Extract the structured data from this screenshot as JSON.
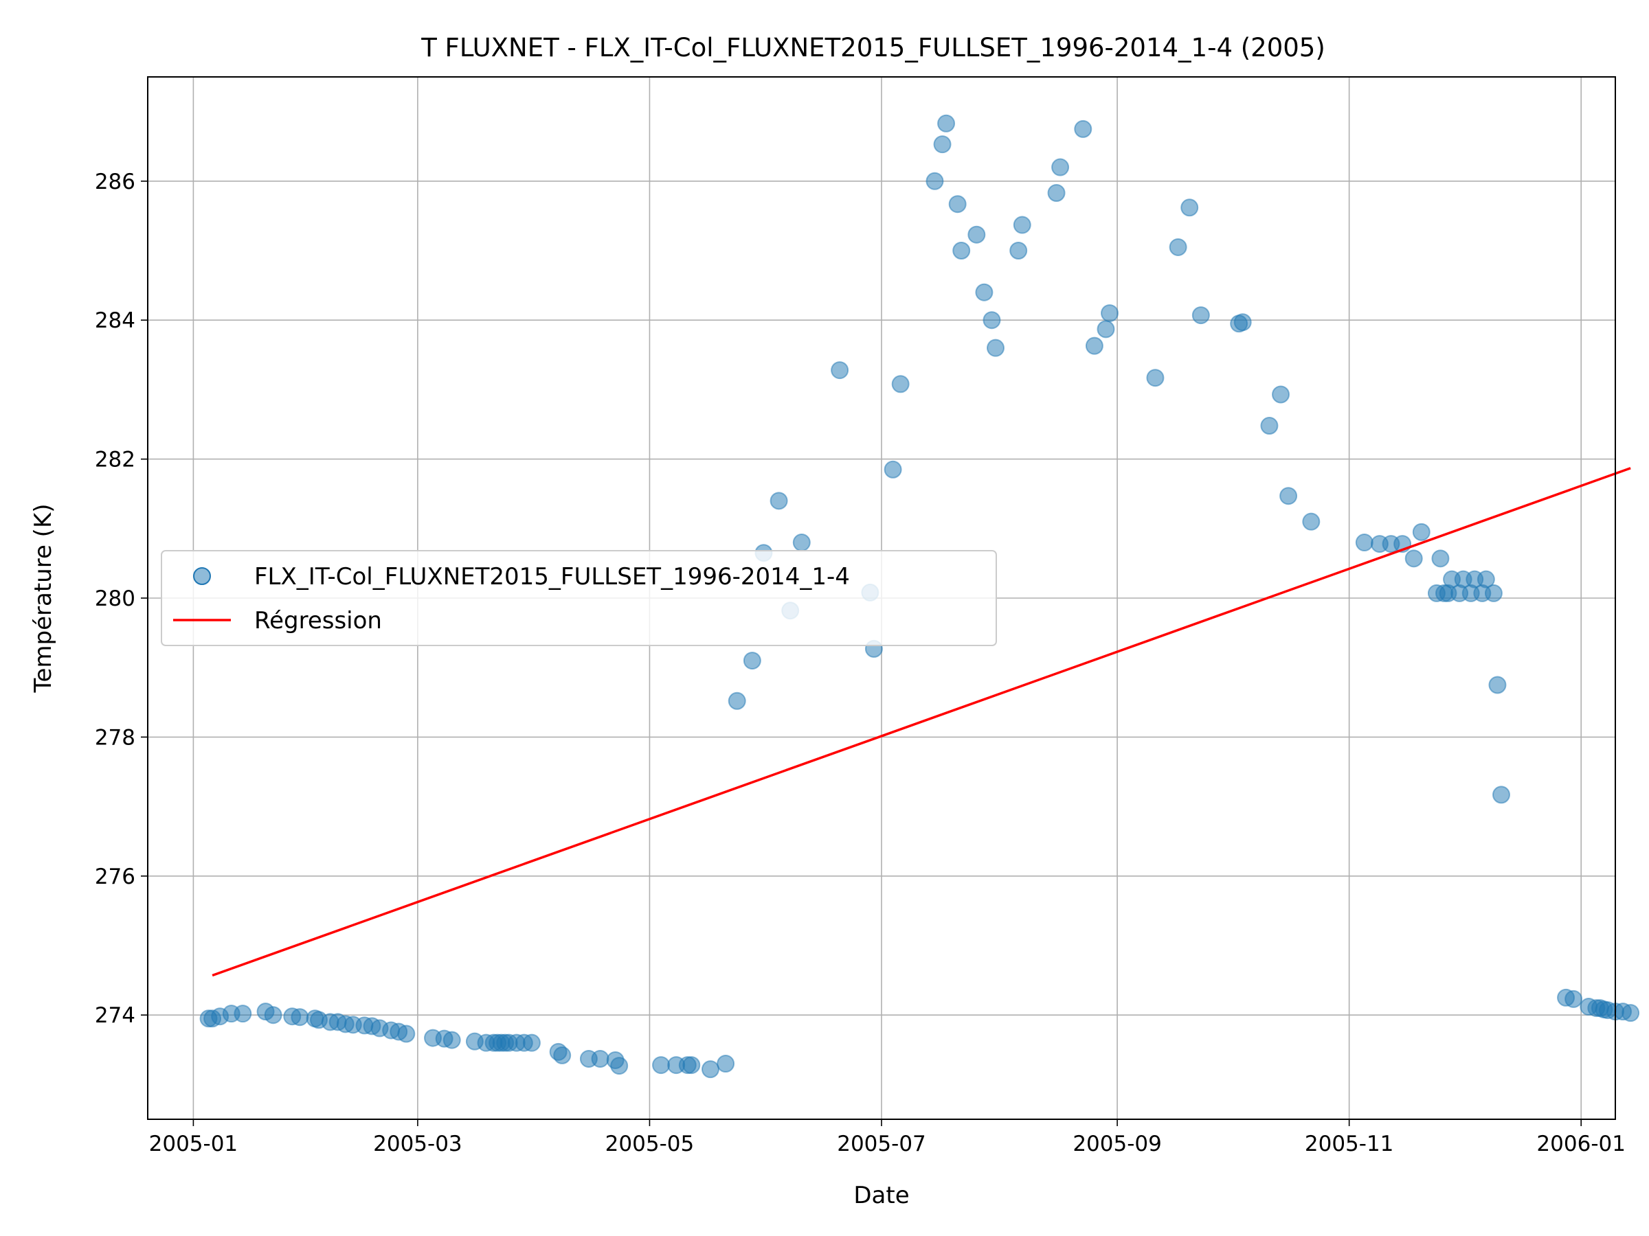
{
  "chart_data": {
    "type": "scatter",
    "title": "T FLUXNET - FLX_IT-Col_FLUXNET2015_FULLSET_1996-2014_1-4 (2005)",
    "xlabel": "Date",
    "ylabel": "Température (K)",
    "xlim": [
      "2004-12-20",
      "2006-01-10"
    ],
    "ylim": [
      272.5,
      287.5
    ],
    "x_ticks": [
      "2005-01",
      "2005-03",
      "2005-05",
      "2005-07",
      "2005-09",
      "2005-11",
      "2006-01"
    ],
    "x_tick_dates": [
      "2005-01-01",
      "2005-03-01",
      "2005-05-01",
      "2005-07-01",
      "2005-09-01",
      "2005-11-01",
      "2006-01-01"
    ],
    "y_ticks": [
      274,
      276,
      278,
      280,
      282,
      284,
      286
    ],
    "grid": true,
    "legend_position": "center-left",
    "colors": {
      "scatter": "#1f77b4",
      "regression": "#ff0000"
    },
    "series": [
      {
        "name": "FLX_IT-Col_FLUXNET2015_FULLSET_1996-2014_1-4",
        "kind": "scatter",
        "points": [
          [
            "2005-01-05",
            273.95
          ],
          [
            "2005-01-06",
            273.95
          ],
          [
            "2005-01-08",
            273.98
          ],
          [
            "2005-01-11",
            274.02
          ],
          [
            "2005-01-14",
            274.02
          ],
          [
            "2005-01-20",
            274.05
          ],
          [
            "2005-01-22",
            274.0
          ],
          [
            "2005-01-27",
            273.98
          ],
          [
            "2005-01-29",
            273.97
          ],
          [
            "2005-02-02",
            273.95
          ],
          [
            "2005-02-03",
            273.93
          ],
          [
            "2005-02-06",
            273.9
          ],
          [
            "2005-02-08",
            273.9
          ],
          [
            "2005-02-10",
            273.87
          ],
          [
            "2005-02-12",
            273.86
          ],
          [
            "2005-02-15",
            273.85
          ],
          [
            "2005-02-17",
            273.84
          ],
          [
            "2005-02-19",
            273.81
          ],
          [
            "2005-02-22",
            273.78
          ],
          [
            "2005-02-24",
            273.76
          ],
          [
            "2005-02-26",
            273.73
          ],
          [
            "2005-03-05",
            273.67
          ],
          [
            "2005-03-08",
            273.66
          ],
          [
            "2005-03-10",
            273.64
          ],
          [
            "2005-03-16",
            273.62
          ],
          [
            "2005-03-19",
            273.6
          ],
          [
            "2005-03-21",
            273.6
          ],
          [
            "2005-03-22",
            273.6
          ],
          [
            "2005-03-23",
            273.6
          ],
          [
            "2005-03-24",
            273.6
          ],
          [
            "2005-03-25",
            273.6
          ],
          [
            "2005-03-27",
            273.6
          ],
          [
            "2005-03-29",
            273.6
          ],
          [
            "2005-03-31",
            273.6
          ],
          [
            "2005-04-07",
            273.47
          ],
          [
            "2005-04-08",
            273.42
          ],
          [
            "2005-04-15",
            273.37
          ],
          [
            "2005-04-18",
            273.37
          ],
          [
            "2005-04-22",
            273.35
          ],
          [
            "2005-04-23",
            273.27
          ],
          [
            "2005-05-04",
            273.28
          ],
          [
            "2005-05-08",
            273.28
          ],
          [
            "2005-05-11",
            273.28
          ],
          [
            "2005-05-12",
            273.28
          ],
          [
            "2005-05-17",
            273.22
          ],
          [
            "2005-05-21",
            273.3
          ],
          [
            "2005-05-24",
            278.52
          ],
          [
            "2005-05-28",
            279.1
          ],
          [
            "2005-05-31",
            280.65
          ],
          [
            "2005-06-04",
            281.4
          ],
          [
            "2005-06-07",
            279.82
          ],
          [
            "2005-06-10",
            280.8
          ],
          [
            "2005-06-20",
            283.28
          ],
          [
            "2005-06-28",
            280.08
          ],
          [
            "2005-06-29",
            279.27
          ],
          [
            "2005-07-04",
            281.85
          ],
          [
            "2005-07-06",
            283.08
          ],
          [
            "2005-07-15",
            286.0
          ],
          [
            "2005-07-17",
            286.53
          ],
          [
            "2005-07-18",
            286.83
          ],
          [
            "2005-07-21",
            285.67
          ],
          [
            "2005-07-22",
            285.0
          ],
          [
            "2005-07-26",
            285.23
          ],
          [
            "2005-07-28",
            284.4
          ],
          [
            "2005-07-30",
            284.0
          ],
          [
            "2005-07-31",
            283.6
          ],
          [
            "2005-08-06",
            285.0
          ],
          [
            "2005-08-07",
            285.37
          ],
          [
            "2005-08-16",
            285.83
          ],
          [
            "2005-08-17",
            286.2
          ],
          [
            "2005-08-23",
            286.75
          ],
          [
            "2005-08-26",
            283.63
          ],
          [
            "2005-08-29",
            283.87
          ],
          [
            "2005-08-30",
            284.1
          ],
          [
            "2005-09-11",
            283.17
          ],
          [
            "2005-09-17",
            285.05
          ],
          [
            "2005-09-20",
            285.62
          ],
          [
            "2005-09-23",
            284.07
          ],
          [
            "2005-10-03",
            283.95
          ],
          [
            "2005-10-04",
            283.97
          ],
          [
            "2005-10-11",
            282.48
          ],
          [
            "2005-10-14",
            282.93
          ],
          [
            "2005-10-16",
            281.47
          ],
          [
            "2005-10-22",
            281.1
          ],
          [
            "2005-11-05",
            280.8
          ],
          [
            "2005-11-09",
            280.78
          ],
          [
            "2005-11-12",
            280.78
          ],
          [
            "2005-11-15",
            280.78
          ],
          [
            "2005-11-18",
            280.57
          ],
          [
            "2005-11-20",
            280.95
          ],
          [
            "2005-11-24",
            280.07
          ],
          [
            "2005-11-25",
            280.57
          ],
          [
            "2005-11-26",
            280.07
          ],
          [
            "2005-11-27",
            280.07
          ],
          [
            "2005-11-28",
            280.27
          ],
          [
            "2005-11-30",
            280.07
          ],
          [
            "2005-12-01",
            280.27
          ],
          [
            "2005-12-03",
            280.07
          ],
          [
            "2005-12-04",
            280.27
          ],
          [
            "2005-12-06",
            280.07
          ],
          [
            "2005-12-07",
            280.27
          ],
          [
            "2005-12-09",
            280.07
          ],
          [
            "2005-12-10",
            278.75
          ],
          [
            "2005-12-11",
            277.17
          ],
          [
            "2005-12-28",
            274.25
          ],
          [
            "2005-12-30",
            274.23
          ],
          [
            "2006-01-03",
            274.12
          ],
          [
            "2006-01-05",
            274.1
          ],
          [
            "2006-01-06",
            274.1
          ],
          [
            "2006-01-07",
            274.08
          ],
          [
            "2006-01-08",
            274.07
          ],
          [
            "2006-01-10",
            274.05
          ],
          [
            "2006-01-12",
            274.05
          ],
          [
            "2006-01-14",
            274.03
          ]
        ]
      },
      {
        "name": "Régression",
        "kind": "line",
        "points": [
          [
            "2005-01-06",
            274.57
          ],
          [
            "2006-01-14",
            281.87
          ]
        ]
      }
    ]
  }
}
